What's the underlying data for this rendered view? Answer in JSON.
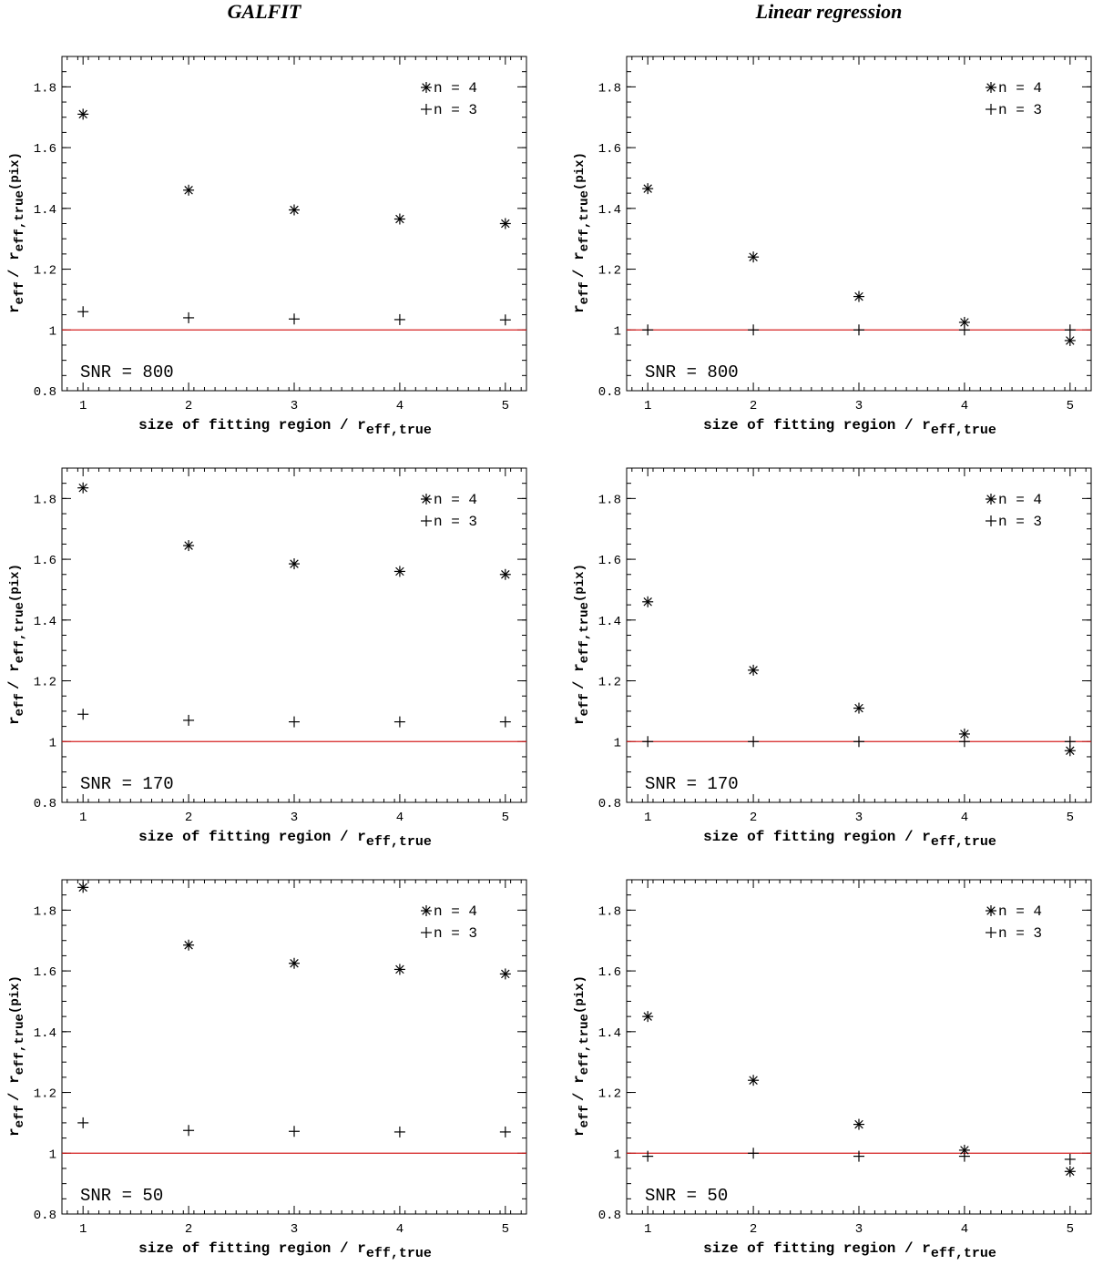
{
  "columns": {
    "left": "GALFIT",
    "right": "Linear regression"
  },
  "shared": {
    "xlabel": "size of fitting region / r",
    "xlabel_sub": "eff,true",
    "ylabel_r": "r",
    "ylabel_sub1": "eff",
    "ylabel_slash": "/ r",
    "ylabel_sub2": "eff,true",
    "ylabel_unit": "(pix)",
    "reference_line_color": "#d42020",
    "xlim": [
      0.8,
      5.2
    ],
    "ylim": [
      0.8,
      1.9
    ],
    "xticks": [
      "1",
      "2",
      "3",
      "4",
      "5"
    ],
    "yticks": [
      "0.8",
      "1",
      "1.2",
      "1.4",
      "1.6",
      "1.8"
    ],
    "legend": [
      {
        "marker": "asterisk",
        "label": "n = 4"
      },
      {
        "marker": "plus",
        "label": "n = 3"
      }
    ]
  },
  "chart_data": [
    {
      "type": "scatter",
      "column": "GALFIT",
      "annotation": "SNR = 800",
      "x": [
        1,
        2,
        3,
        4,
        5
      ],
      "series": [
        {
          "name": "n = 4",
          "marker": "asterisk",
          "values": [
            1.71,
            1.46,
            1.395,
            1.365,
            1.35
          ]
        },
        {
          "name": "n = 3",
          "marker": "plus",
          "values": [
            1.06,
            1.04,
            1.036,
            1.034,
            1.033
          ]
        }
      ],
      "reference_y": 1
    },
    {
      "type": "scatter",
      "column": "Linear regression",
      "annotation": "SNR = 800",
      "x": [
        1,
        2,
        3,
        4,
        5
      ],
      "series": [
        {
          "name": "n = 4",
          "marker": "asterisk",
          "values": [
            1.465,
            1.24,
            1.11,
            1.025,
            0.965
          ]
        },
        {
          "name": "n = 3",
          "marker": "plus",
          "values": [
            1.0,
            1.0,
            1.0,
            1.0,
            1.0
          ]
        }
      ],
      "reference_y": 1
    },
    {
      "type": "scatter",
      "column": "GALFIT",
      "annotation": "SNR = 170",
      "x": [
        1,
        2,
        3,
        4,
        5
      ],
      "series": [
        {
          "name": "n = 4",
          "marker": "asterisk",
          "values": [
            1.835,
            1.645,
            1.585,
            1.56,
            1.55
          ]
        },
        {
          "name": "n = 3",
          "marker": "plus",
          "values": [
            1.09,
            1.07,
            1.065,
            1.065,
            1.065
          ]
        }
      ],
      "reference_y": 1
    },
    {
      "type": "scatter",
      "column": "Linear regression",
      "annotation": "SNR = 170",
      "x": [
        1,
        2,
        3,
        4,
        5
      ],
      "series": [
        {
          "name": "n = 4",
          "marker": "asterisk",
          "values": [
            1.46,
            1.235,
            1.11,
            1.025,
            0.97
          ]
        },
        {
          "name": "n = 3",
          "marker": "plus",
          "values": [
            1.0,
            1.0,
            1.0,
            1.0,
            1.0
          ]
        }
      ],
      "reference_y": 1
    },
    {
      "type": "scatter",
      "column": "GALFIT",
      "annotation": "SNR = 50",
      "x": [
        1,
        2,
        3,
        4,
        5
      ],
      "series": [
        {
          "name": "n = 4",
          "marker": "asterisk",
          "values": [
            1.875,
            1.685,
            1.625,
            1.605,
            1.59
          ]
        },
        {
          "name": "n = 3",
          "marker": "plus",
          "values": [
            1.1,
            1.075,
            1.072,
            1.07,
            1.07
          ]
        }
      ],
      "reference_y": 1
    },
    {
      "type": "scatter",
      "column": "Linear regression",
      "annotation": "SNR = 50",
      "x": [
        1,
        2,
        3,
        4,
        5
      ],
      "series": [
        {
          "name": "n = 4",
          "marker": "asterisk",
          "values": [
            1.45,
            1.24,
            1.095,
            1.01,
            0.94
          ]
        },
        {
          "name": "n = 3",
          "marker": "plus",
          "values": [
            0.99,
            1.0,
            0.99,
            0.99,
            0.98
          ]
        }
      ],
      "reference_y": 1
    }
  ]
}
